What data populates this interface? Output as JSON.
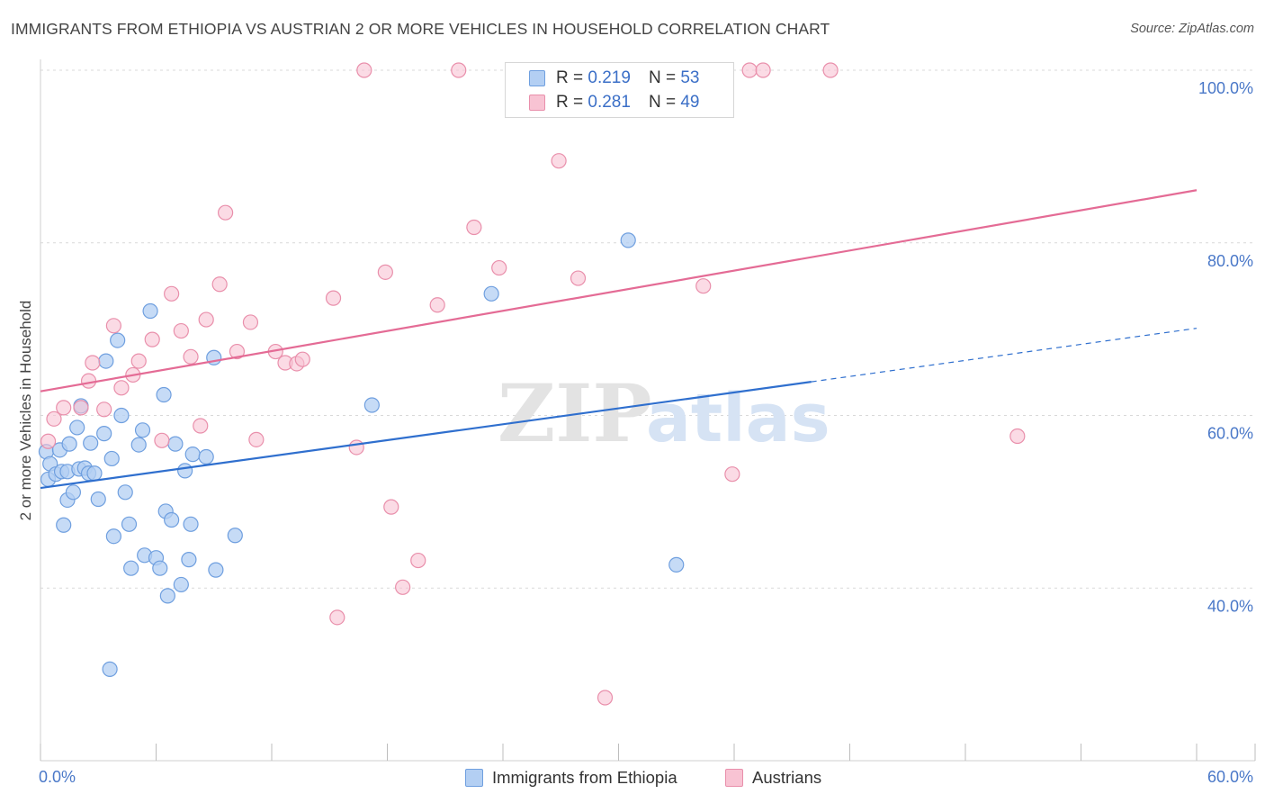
{
  "title": "IMMIGRANTS FROM ETHIOPIA VS AUSTRIAN 2 OR MORE VEHICLES IN HOUSEHOLD CORRELATION CHART",
  "source": "Source: ZipAtlas.com",
  "watermark": {
    "zip": "ZIP",
    "atlas": "atlas"
  },
  "legend": {
    "rows": [
      {
        "r_label": "R =",
        "r_value": "0.219",
        "n_label": "N =",
        "n_value": "53"
      },
      {
        "r_label": "R =",
        "r_value": "0.281",
        "n_label": "N =",
        "n_value": "49"
      }
    ]
  },
  "colors": {
    "blue_fill": "#b3cff3",
    "blue_stroke": "#6f9fdf",
    "blue_line": "#2f6fce",
    "pink_fill": "#f8c3d3",
    "pink_stroke": "#e98fab",
    "pink_line": "#e46b95",
    "grid": "#d9d9d9",
    "tick_text": "#4a78c8"
  },
  "chart_data": {
    "type": "scatter",
    "xlabel": "",
    "ylabel": "2 or more Vehicles in Household",
    "xlim": [
      0,
      60
    ],
    "ylim": [
      20,
      100
    ],
    "x_tick_labels": [
      "0.0%",
      "60.0%"
    ],
    "y_ticks": [
      40,
      60,
      80,
      100
    ],
    "y_tick_labels": [
      "40.0%",
      "60.0%",
      "80.0%",
      "100.0%"
    ],
    "grid": true,
    "legend_position": "top-center",
    "series": [
      {
        "name": "Immigrants from Ethiopia",
        "color": "blue",
        "points": [
          [
            0.3,
            55.8
          ],
          [
            0.4,
            52.6
          ],
          [
            0.5,
            54.4
          ],
          [
            0.8,
            53.2
          ],
          [
            1.0,
            56.0
          ],
          [
            1.1,
            53.5
          ],
          [
            1.2,
            47.3
          ],
          [
            1.4,
            53.5
          ],
          [
            1.4,
            50.2
          ],
          [
            1.5,
            56.7
          ],
          [
            1.7,
            51.1
          ],
          [
            1.9,
            58.6
          ],
          [
            2.0,
            53.8
          ],
          [
            2.1,
            61.1
          ],
          [
            2.3,
            53.9
          ],
          [
            2.5,
            53.3
          ],
          [
            2.6,
            56.8
          ],
          [
            2.8,
            53.3
          ],
          [
            3.0,
            50.3
          ],
          [
            3.3,
            57.9
          ],
          [
            3.4,
            66.3
          ],
          [
            3.7,
            55.0
          ],
          [
            3.8,
            46.0
          ],
          [
            4.0,
            68.7
          ],
          [
            4.2,
            60.0
          ],
          [
            4.4,
            51.1
          ],
          [
            4.6,
            47.4
          ],
          [
            4.7,
            42.3
          ],
          [
            5.1,
            56.6
          ],
          [
            5.3,
            58.3
          ],
          [
            5.4,
            43.8
          ],
          [
            5.7,
            72.1
          ],
          [
            6.0,
            43.5
          ],
          [
            6.2,
            42.3
          ],
          [
            6.4,
            62.4
          ],
          [
            6.5,
            48.9
          ],
          [
            6.6,
            39.1
          ],
          [
            6.8,
            47.9
          ],
          [
            7.0,
            56.7
          ],
          [
            7.3,
            40.4
          ],
          [
            7.5,
            53.6
          ],
          [
            7.7,
            43.3
          ],
          [
            7.8,
            47.4
          ],
          [
            7.9,
            55.5
          ],
          [
            8.6,
            55.2
          ],
          [
            9.0,
            66.7
          ],
          [
            9.1,
            42.1
          ],
          [
            10.1,
            46.1
          ],
          [
            3.6,
            30.6
          ],
          [
            17.2,
            61.2
          ],
          [
            23.4,
            74.1
          ],
          [
            30.5,
            80.3
          ],
          [
            33.0,
            42.7
          ]
        ]
      },
      {
        "name": "Austrians",
        "color": "pink",
        "points": [
          [
            0.4,
            57.0
          ],
          [
            0.7,
            59.6
          ],
          [
            1.2,
            60.9
          ],
          [
            2.1,
            60.9
          ],
          [
            2.5,
            64.0
          ],
          [
            2.7,
            66.1
          ],
          [
            3.3,
            60.7
          ],
          [
            3.8,
            70.4
          ],
          [
            4.2,
            63.2
          ],
          [
            4.8,
            64.7
          ],
          [
            5.1,
            66.3
          ],
          [
            5.8,
            68.8
          ],
          [
            6.3,
            57.1
          ],
          [
            6.8,
            74.1
          ],
          [
            7.3,
            69.8
          ],
          [
            7.8,
            66.8
          ],
          [
            8.3,
            58.8
          ],
          [
            8.6,
            71.1
          ],
          [
            9.3,
            75.2
          ],
          [
            9.6,
            83.5
          ],
          [
            10.2,
            67.4
          ],
          [
            10.9,
            70.8
          ],
          [
            11.2,
            57.2
          ],
          [
            12.2,
            67.4
          ],
          [
            12.7,
            66.1
          ],
          [
            13.3,
            66.0
          ],
          [
            13.6,
            66.5
          ],
          [
            15.2,
            73.6
          ],
          [
            15.4,
            36.6
          ],
          [
            16.4,
            56.3
          ],
          [
            16.8,
            100.0
          ],
          [
            17.9,
            76.6
          ],
          [
            18.2,
            49.4
          ],
          [
            18.8,
            40.1
          ],
          [
            19.6,
            43.2
          ],
          [
            20.6,
            72.8
          ],
          [
            21.7,
            100.0
          ],
          [
            22.5,
            81.8
          ],
          [
            23.8,
            77.1
          ],
          [
            26.9,
            89.5
          ],
          [
            27.9,
            75.9
          ],
          [
            29.3,
            27.3
          ],
          [
            34.4,
            75.0
          ],
          [
            35.9,
            53.2
          ],
          [
            36.8,
            100.0
          ],
          [
            37.5,
            100.0
          ],
          [
            41.0,
            100.0
          ],
          [
            50.7,
            57.6
          ],
          [
            28.0,
            100.0
          ]
        ]
      }
    ],
    "trend_lines": [
      {
        "series": "Immigrants from Ethiopia",
        "x_start": 0,
        "y_start": 51.6,
        "x_end_solid": 40.0,
        "y_end_solid": 63.9,
        "x_end_dashed": 60,
        "y_end_dashed": 70.1
      },
      {
        "series": "Austrians",
        "x_start": 0,
        "y_start": 62.8,
        "x_end": 60,
        "y_end": 86.1
      }
    ]
  },
  "bottom_legend": {
    "items": [
      {
        "label": "Immigrants from Ethiopia"
      },
      {
        "label": "Austrians"
      }
    ]
  }
}
